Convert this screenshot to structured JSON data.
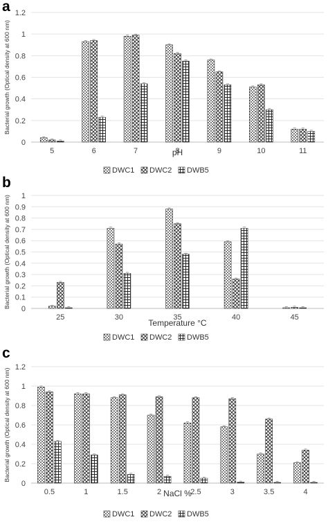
{
  "patterns": {
    "DWC1": "dots",
    "DWC2": "diagonal-crosshatch",
    "DWB5": "grid"
  },
  "chart_data": [
    {
      "panel": "a",
      "type": "bar",
      "xlabel": "pH",
      "ylabel": "Bacterial growth (Optical density at 600 nm)",
      "ylim": [
        0,
        1.2
      ],
      "yticks": [
        "0",
        "0.2",
        "0.4",
        "0.6",
        "0.8",
        "1",
        "1.2"
      ],
      "categories": [
        "5",
        "6",
        "7",
        "8",
        "9",
        "10",
        "11"
      ],
      "series": [
        {
          "name": "DWC1",
          "values": [
            0.04,
            0.93,
            0.98,
            0.9,
            0.76,
            0.51,
            0.12
          ]
        },
        {
          "name": "DWC2",
          "values": [
            0.02,
            0.94,
            0.99,
            0.82,
            0.65,
            0.53,
            0.12
          ]
        },
        {
          "name": "DWB5",
          "values": [
            0.01,
            0.23,
            0.54,
            0.75,
            0.53,
            0.3,
            0.1
          ]
        }
      ],
      "grid": true,
      "legend": "bottom"
    },
    {
      "panel": "b",
      "type": "bar",
      "xlabel": "Temperature °C",
      "ylabel": "Bacterial growth (Optical density at 600 nm)",
      "ylim": [
        0,
        1
      ],
      "yticks": [
        "0",
        "0.1",
        "0.2",
        "0.3",
        "0.4",
        "0.5",
        "0.6",
        "0.7",
        "0.8",
        "0.9",
        "1"
      ],
      "categories": [
        "25",
        "30",
        "35",
        "40",
        "45"
      ],
      "series": [
        {
          "name": "DWC1",
          "values": [
            0.02,
            0.71,
            0.88,
            0.59,
            0.005
          ]
        },
        {
          "name": "DWC2",
          "values": [
            0.23,
            0.57,
            0.75,
            0.26,
            0.01
          ]
        },
        {
          "name": "DWB5",
          "values": [
            0.005,
            0.31,
            0.48,
            0.71,
            0.005
          ]
        }
      ],
      "grid": true,
      "legend": "bottom"
    },
    {
      "panel": "c",
      "type": "bar",
      "xlabel": "NaCl %",
      "ylabel": "Bacterial growth (Optical density at 600 nm)",
      "ylim": [
        0,
        1.2
      ],
      "yticks": [
        "0",
        "0.2",
        "0.4",
        "0.6",
        "0.8",
        "1",
        "1.2"
      ],
      "categories": [
        "0.5",
        "1",
        "1.5",
        "2",
        "2.5",
        "3",
        "3.5",
        "4"
      ],
      "series": [
        {
          "name": "DWC1",
          "values": [
            0.99,
            0.92,
            0.88,
            0.7,
            0.62,
            0.58,
            0.3,
            0.21
          ]
        },
        {
          "name": "DWC2",
          "values": [
            0.94,
            0.92,
            0.91,
            0.89,
            0.88,
            0.87,
            0.66,
            0.34
          ]
        },
        {
          "name": "DWB5",
          "values": [
            0.43,
            0.29,
            0.09,
            0.07,
            0.05,
            0.01,
            0.005,
            0.005
          ]
        }
      ],
      "grid": true,
      "legend": "bottom"
    }
  ]
}
